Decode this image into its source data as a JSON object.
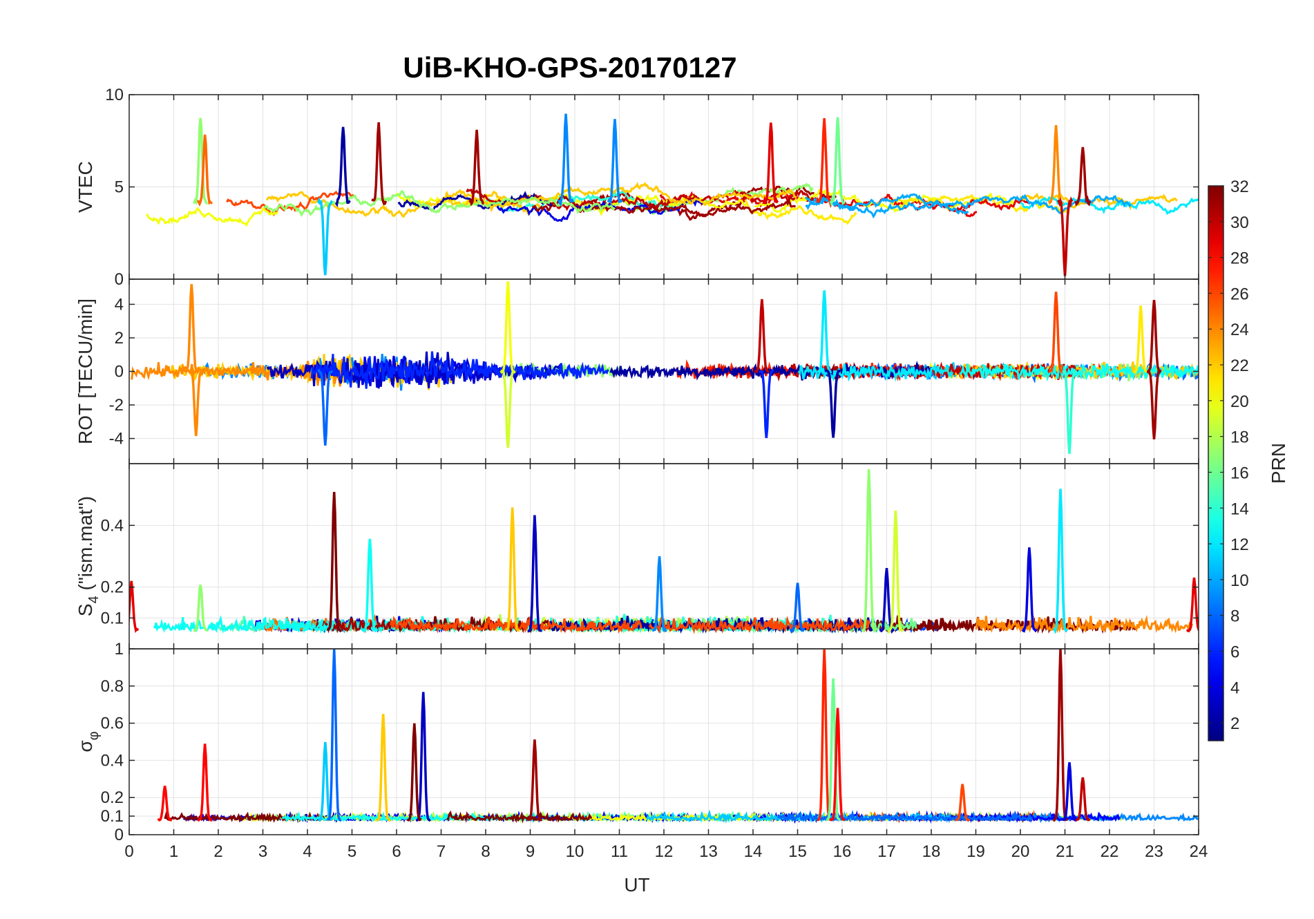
{
  "chart_data": {
    "type": "line",
    "title": "UiB-KHO-GPS-20170127",
    "xlabel": "UT",
    "xlim": [
      0,
      24
    ],
    "xticks": [
      "0",
      "1",
      "2",
      "3",
      "4",
      "5",
      "6",
      "7",
      "8",
      "9",
      "10",
      "11",
      "12",
      "13",
      "14",
      "15",
      "16",
      "17",
      "18",
      "19",
      "20",
      "21",
      "22",
      "23",
      "24"
    ],
    "colorbar": {
      "label": "PRN",
      "range": [
        1,
        32
      ],
      "ticks": [
        "2",
        "4",
        "6",
        "8",
        "10",
        "12",
        "14",
        "16",
        "18",
        "20",
        "22",
        "24",
        "26",
        "28",
        "30",
        "32"
      ]
    },
    "panels": [
      {
        "ylabel": "VTEC",
        "ylim": [
          0,
          10
        ],
        "yticks": [
          "0",
          "5",
          "10"
        ],
        "baseline": 4.2,
        "noise": 0.9,
        "events": [
          {
            "t": 1.6,
            "peak": 8.8,
            "prn": 17
          },
          {
            "t": 1.7,
            "peak": 7.8,
            "prn": 25
          },
          {
            "t": 4.8,
            "peak": 8.3,
            "prn": 2
          },
          {
            "t": 5.6,
            "peak": 8.4,
            "prn": 31
          },
          {
            "t": 7.8,
            "peak": 8.0,
            "prn": 31
          },
          {
            "t": 9.8,
            "peak": 8.9,
            "prn": 9
          },
          {
            "t": 10.9,
            "peak": 8.7,
            "prn": 9
          },
          {
            "t": 14.4,
            "peak": 8.6,
            "prn": 29
          },
          {
            "t": 15.6,
            "peak": 8.6,
            "prn": 27
          },
          {
            "t": 15.9,
            "peak": 8.8,
            "prn": 16
          },
          {
            "t": 20.8,
            "peak": 8.3,
            "prn": 24
          },
          {
            "t": 21.4,
            "peak": 7.2,
            "prn": 31
          },
          {
            "t": 4.4,
            "peak": 0.2,
            "prn": 11
          },
          {
            "t": 21.0,
            "peak": 0.3,
            "prn": 30
          }
        ]
      },
      {
        "ylabel": "ROT [TECU/min]",
        "ylim": [
          -5.5,
          5.5
        ],
        "yticks": [
          "-4",
          "-2",
          "0",
          "2",
          "4"
        ],
        "baseline": 0,
        "noise": 0.35,
        "events": [
          {
            "t": 1.4,
            "peak": 5.2,
            "prn": 24
          },
          {
            "t": 1.5,
            "peak": -3.8,
            "prn": 24
          },
          {
            "t": 4.4,
            "peak": -4.4,
            "prn": 8
          },
          {
            "t": 8.5,
            "peak": 5.4,
            "prn": 20
          },
          {
            "t": 8.5,
            "peak": -4.6,
            "prn": 19
          },
          {
            "t": 14.2,
            "peak": 4.3,
            "prn": 30
          },
          {
            "t": 14.3,
            "peak": -4.0,
            "prn": 6
          },
          {
            "t": 15.6,
            "peak": 4.8,
            "prn": 12
          },
          {
            "t": 15.8,
            "peak": -4.0,
            "prn": 2
          },
          {
            "t": 20.8,
            "peak": 4.7,
            "prn": 26
          },
          {
            "t": 21.1,
            "peak": -4.9,
            "prn": 14
          },
          {
            "t": 22.7,
            "peak": 3.9,
            "prn": 21
          },
          {
            "t": 23.0,
            "peak": 4.3,
            "prn": 31
          },
          {
            "t": 23.0,
            "peak": -4.0,
            "prn": 31
          }
        ]
      },
      {
        "ylabel": "S_4 (\"ism.mat\")",
        "ylim": [
          0,
          0.6
        ],
        "yticks": [
          "0.1",
          "0.2",
          "0.4"
        ],
        "baseline": 0.06,
        "noise": 0.025,
        "events": [
          {
            "t": 0.05,
            "peak": 0.22,
            "prn": 29
          },
          {
            "t": 1.6,
            "peak": 0.21,
            "prn": 17
          },
          {
            "t": 4.6,
            "peak": 0.51,
            "prn": 32
          },
          {
            "t": 5.4,
            "peak": 0.36,
            "prn": 13
          },
          {
            "t": 8.6,
            "peak": 0.46,
            "prn": 22
          },
          {
            "t": 9.1,
            "peak": 0.43,
            "prn": 3
          },
          {
            "t": 11.9,
            "peak": 0.3,
            "prn": 9
          },
          {
            "t": 15.0,
            "peak": 0.21,
            "prn": 8
          },
          {
            "t": 16.6,
            "peak": 0.58,
            "prn": 17
          },
          {
            "t": 17.0,
            "peak": 0.26,
            "prn": 3
          },
          {
            "t": 17.2,
            "peak": 0.45,
            "prn": 19
          },
          {
            "t": 20.2,
            "peak": 0.33,
            "prn": 4
          },
          {
            "t": 20.9,
            "peak": 0.52,
            "prn": 12
          },
          {
            "t": 23.9,
            "peak": 0.23,
            "prn": 29
          }
        ]
      },
      {
        "ylabel": "σ_φ",
        "ylim": [
          0,
          1
        ],
        "yticks": [
          "0",
          "0.1",
          "0.2",
          "0.4",
          "0.6",
          "0.8",
          "1"
        ],
        "baseline": 0.08,
        "noise": 0.018,
        "events": [
          {
            "t": 0.8,
            "peak": 0.26,
            "prn": 28
          },
          {
            "t": 1.7,
            "peak": 0.49,
            "prn": 28
          },
          {
            "t": 4.4,
            "peak": 0.5,
            "prn": 11
          },
          {
            "t": 4.6,
            "peak": 1.0,
            "prn": 8
          },
          {
            "t": 5.7,
            "peak": 0.65,
            "prn": 22
          },
          {
            "t": 6.6,
            "peak": 0.77,
            "prn": 3
          },
          {
            "t": 6.4,
            "peak": 0.6,
            "prn": 32
          },
          {
            "t": 9.1,
            "peak": 0.51,
            "prn": 31
          },
          {
            "t": 15.6,
            "peak": 1.0,
            "prn": 27
          },
          {
            "t": 15.8,
            "peak": 0.84,
            "prn": 16
          },
          {
            "t": 15.9,
            "peak": 0.68,
            "prn": 28
          },
          {
            "t": 18.7,
            "peak": 0.27,
            "prn": 26
          },
          {
            "t": 20.9,
            "peak": 1.0,
            "prn": 31
          },
          {
            "t": 21.1,
            "peak": 0.39,
            "prn": 4
          },
          {
            "t": 21.4,
            "peak": 0.31,
            "prn": 30
          }
        ]
      }
    ]
  }
}
